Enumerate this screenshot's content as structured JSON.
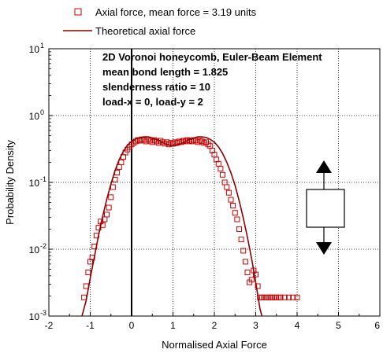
{
  "chart_data": {
    "type": "scatter",
    "xlabel": "Normalised Axial Force",
    "ylabel": "Probability Density",
    "xlim": [
      -2,
      6
    ],
    "ylim": [
      0.001,
      10
    ],
    "y_scale": "log",
    "grid": true,
    "legend_position": "top",
    "x_ticks": [
      "-2",
      "-1",
      "0",
      "1",
      "2",
      "3",
      "4",
      "5",
      "6"
    ],
    "y_tick_values": [
      0.001,
      0.01,
      0.1,
      1,
      10
    ],
    "y_tick_bases": [
      "10",
      "10",
      "10",
      "10",
      "10"
    ],
    "y_tick_exponents": [
      "-3",
      "-2",
      "-1",
      "0",
      "1"
    ],
    "annotations": [
      "2D Voronoi honeycomb, Euler-Beam Element",
      "mean bond length = 1.825",
      "slenderness ratio = 10",
      "load-x = 0, load-y = 2"
    ],
    "reference_line_x": 0,
    "series": [
      {
        "name": "Axial force, mean force = 3.19 units",
        "marker": "open-square",
        "color": "#cc0000",
        "points": [
          [
            -1.15,
            0.0019
          ],
          [
            -1.1,
            0.0028
          ],
          [
            -1.05,
            0.0045
          ],
          [
            -1.0,
            0.0065
          ],
          [
            -0.95,
            0.0075
          ],
          [
            -0.9,
            0.011
          ],
          [
            -0.85,
            0.016
          ],
          [
            -0.8,
            0.021
          ],
          [
            -0.75,
            0.026
          ],
          [
            -0.7,
            0.023
          ],
          [
            -0.65,
            0.028
          ],
          [
            -0.6,
            0.033
          ],
          [
            -0.55,
            0.042
          ],
          [
            -0.5,
            0.06
          ],
          [
            -0.45,
            0.085
          ],
          [
            -0.4,
            0.11
          ],
          [
            -0.35,
            0.14
          ],
          [
            -0.3,
            0.17
          ],
          [
            -0.25,
            0.2
          ],
          [
            -0.2,
            0.24
          ],
          [
            -0.15,
            0.28
          ],
          [
            -0.1,
            0.31
          ],
          [
            -0.05,
            0.34
          ],
          [
            0.0,
            0.37
          ],
          [
            0.05,
            0.39
          ],
          [
            0.1,
            0.41
          ],
          [
            0.15,
            0.43
          ],
          [
            0.2,
            0.42
          ],
          [
            0.25,
            0.44
          ],
          [
            0.3,
            0.43
          ],
          [
            0.35,
            0.41
          ],
          [
            0.4,
            0.44
          ],
          [
            0.45,
            0.42
          ],
          [
            0.5,
            0.4
          ],
          [
            0.55,
            0.43
          ],
          [
            0.6,
            0.41
          ],
          [
            0.65,
            0.39
          ],
          [
            0.7,
            0.42
          ],
          [
            0.75,
            0.4
          ],
          [
            0.8,
            0.38
          ],
          [
            0.85,
            0.4
          ],
          [
            0.9,
            0.37
          ],
          [
            0.95,
            0.39
          ],
          [
            1.0,
            0.38
          ],
          [
            1.05,
            0.4
          ],
          [
            1.1,
            0.39
          ],
          [
            1.15,
            0.41
          ],
          [
            1.2,
            0.4
          ],
          [
            1.25,
            0.42
          ],
          [
            1.3,
            0.41
          ],
          [
            1.35,
            0.43
          ],
          [
            1.4,
            0.42
          ],
          [
            1.45,
            0.41
          ],
          [
            1.5,
            0.43
          ],
          [
            1.55,
            0.42
          ],
          [
            1.6,
            0.4
          ],
          [
            1.65,
            0.42
          ],
          [
            1.7,
            0.41
          ],
          [
            1.75,
            0.39
          ],
          [
            1.8,
            0.4
          ],
          [
            1.85,
            0.37
          ],
          [
            1.9,
            0.35
          ],
          [
            1.95,
            0.3
          ],
          [
            2.0,
            0.26
          ],
          [
            2.05,
            0.22
          ],
          [
            2.1,
            0.19
          ],
          [
            2.15,
            0.16
          ],
          [
            2.2,
            0.13
          ],
          [
            2.25,
            0.1
          ],
          [
            2.3,
            0.085
          ],
          [
            2.35,
            0.07
          ],
          [
            2.4,
            0.055
          ],
          [
            2.45,
            0.045
          ],
          [
            2.5,
            0.035
          ],
          [
            2.55,
            0.028
          ],
          [
            2.6,
            0.02
          ],
          [
            2.65,
            0.014
          ],
          [
            2.7,
            0.0095
          ],
          [
            2.75,
            0.0065
          ],
          [
            2.8,
            0.0045
          ],
          [
            2.85,
            0.0032
          ],
          [
            2.9,
            0.0035
          ],
          [
            2.95,
            0.0048
          ],
          [
            3.0,
            0.0042
          ],
          [
            3.05,
            0.0028
          ],
          [
            3.1,
            0.0019
          ],
          [
            3.15,
            0.0019
          ],
          [
            3.2,
            0.0019
          ],
          [
            3.25,
            0.0019
          ],
          [
            3.3,
            0.0019
          ],
          [
            3.35,
            0.0019
          ],
          [
            3.4,
            0.0019
          ],
          [
            3.45,
            0.0019
          ],
          [
            3.5,
            0.0019
          ],
          [
            3.55,
            0.0019
          ],
          [
            3.6,
            0.0019
          ],
          [
            3.7,
            0.0019
          ],
          [
            3.8,
            0.0019
          ],
          [
            3.9,
            0.0019
          ],
          [
            4.0,
            0.0019
          ]
        ]
      },
      {
        "name": "Theoretical axial force",
        "line": "solid",
        "color": "#8b0000",
        "points": [
          [
            -1.2,
            0.00085
          ],
          [
            -1.1,
            0.0017
          ],
          [
            -1.0,
            0.0037
          ],
          [
            -0.9,
            0.0077
          ],
          [
            -0.8,
            0.016
          ],
          [
            -0.7,
            0.031
          ],
          [
            -0.6,
            0.056
          ],
          [
            -0.5,
            0.095
          ],
          [
            -0.4,
            0.15
          ],
          [
            -0.3,
            0.22
          ],
          [
            -0.2,
            0.29
          ],
          [
            -0.1,
            0.36
          ],
          [
            0.0,
            0.41
          ],
          [
            0.1,
            0.45
          ],
          [
            0.2,
            0.47
          ],
          [
            0.3,
            0.48
          ],
          [
            0.4,
            0.48
          ],
          [
            0.5,
            0.46
          ],
          [
            0.6,
            0.44
          ],
          [
            0.7,
            0.41
          ],
          [
            0.8,
            0.38
          ],
          [
            0.9,
            0.36
          ],
          [
            1.0,
            0.35
          ],
          [
            1.1,
            0.36
          ],
          [
            1.2,
            0.38
          ],
          [
            1.3,
            0.41
          ],
          [
            1.4,
            0.44
          ],
          [
            1.5,
            0.46
          ],
          [
            1.6,
            0.48
          ],
          [
            1.7,
            0.48
          ],
          [
            1.8,
            0.47
          ],
          [
            1.9,
            0.44
          ],
          [
            2.0,
            0.4
          ],
          [
            2.1,
            0.34
          ],
          [
            2.2,
            0.27
          ],
          [
            2.3,
            0.2
          ],
          [
            2.4,
            0.14
          ],
          [
            2.5,
            0.09
          ],
          [
            2.6,
            0.053
          ],
          [
            2.7,
            0.029
          ],
          [
            2.8,
            0.015
          ],
          [
            2.9,
            0.0072
          ],
          [
            3.0,
            0.0032
          ],
          [
            3.1,
            0.0013
          ],
          [
            3.15,
            0.0008
          ]
        ]
      }
    ]
  }
}
